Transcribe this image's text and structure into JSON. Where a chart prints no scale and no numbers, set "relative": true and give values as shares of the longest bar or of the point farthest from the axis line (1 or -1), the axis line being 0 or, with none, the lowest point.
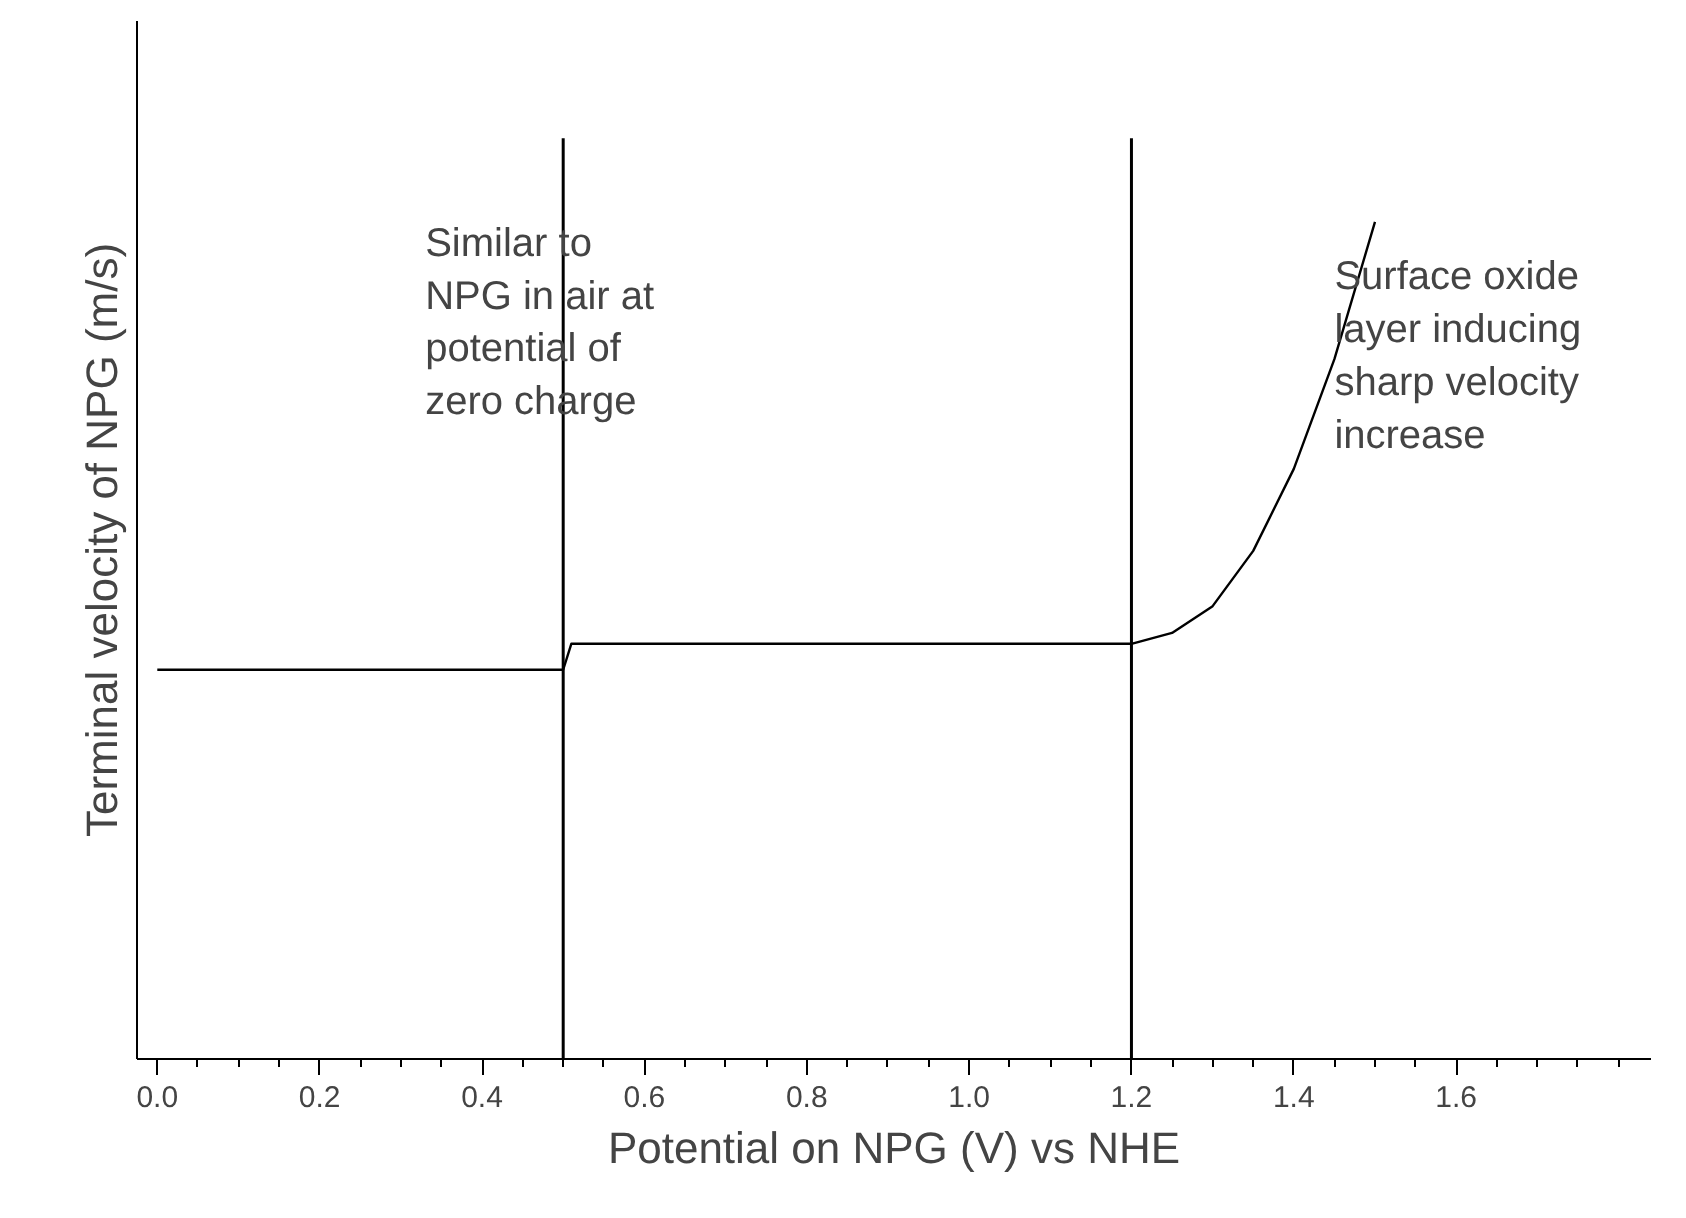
{
  "chart_data": {
    "type": "line",
    "relative": true,
    "xlabel": "Potential on NPG (V) vs NHE",
    "ylabel": "Terminal velocity of NPG (m/s)",
    "x": [
      0,
      0.5,
      0.51,
      1.2,
      1.25,
      1.3,
      1.35,
      1.4,
      1.45,
      1.5
    ],
    "series": [
      {
        "color": "#000000",
        "values": [
          0.465,
          0.465,
          0.496,
          0.496,
          0.509,
          0.541,
          0.607,
          0.705,
          0.836,
          1
        ]
      }
    ],
    "xlim": [
      -0.025,
      1.84
    ],
    "xticks": [
      {
        "value": 0,
        "label": "0.0"
      },
      0.2,
      0.4,
      0.6,
      0.8,
      {
        "value": 1,
        "label": "1.0"
      },
      1.2,
      1.4,
      1.6
    ],
    "ref_lines": [
      {
        "axis": "x",
        "value": 0.5,
        "label": null,
        "color": "#000000"
      },
      {
        "axis": "x",
        "value": 1.2,
        "label": null,
        "color": "#000000"
      }
    ],
    "annotations": [
      "Similar to\nNPG in air at\npotential of\nzero charge",
      "Surface oxide\nlayer inducing\nsharp velocity\nincrease"
    ],
    "grid": false,
    "marker": "none",
    "line_style": "solid"
  }
}
